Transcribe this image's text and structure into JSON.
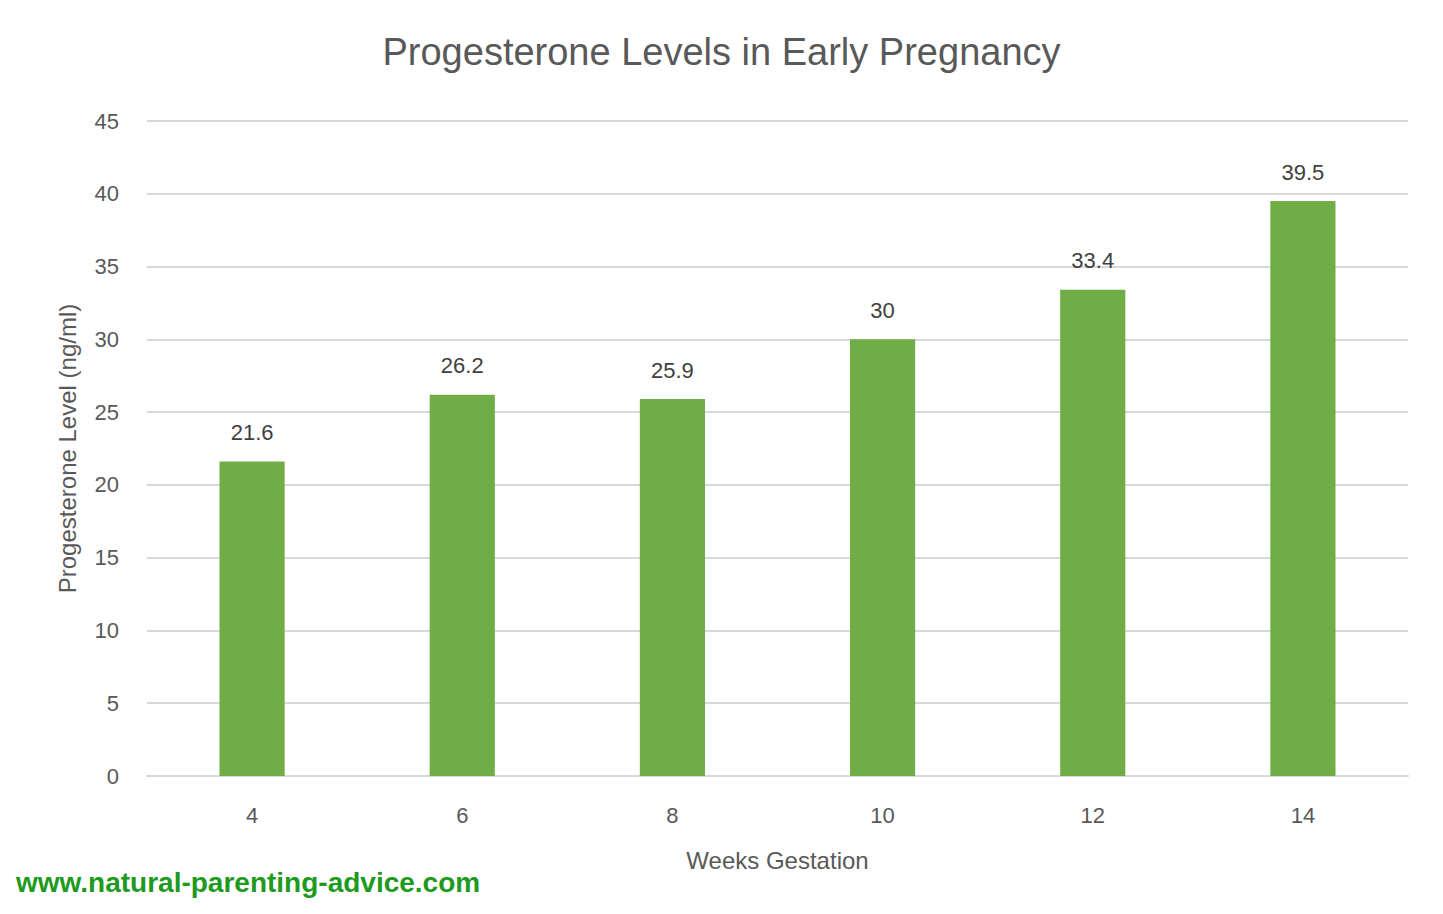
{
  "chart_data": {
    "type": "bar",
    "title": "Progesterone Levels in Early Pregnancy",
    "x_label": "Weeks Gestation",
    "y_label": "Progesterone Level (ng/ml)",
    "categories": [
      "4",
      "6",
      "8",
      "10",
      "12",
      "14"
    ],
    "values": [
      21.6,
      26.2,
      25.9,
      30,
      33.4,
      39.5
    ],
    "color": "#70ad47",
    "ylim": [
      0,
      45
    ],
    "yticks": [
      0,
      5,
      10,
      15,
      20,
      25,
      30,
      35,
      40,
      45
    ],
    "grid": true,
    "data_labels": true,
    "annotation": "www.natural-parenting-advice.com"
  }
}
